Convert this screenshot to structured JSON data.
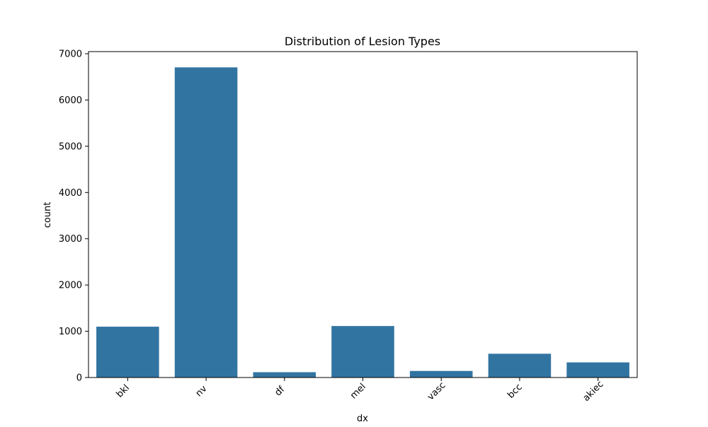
{
  "chart_data": {
    "type": "bar",
    "title": "Distribution of Lesion Types",
    "xlabel": "dx",
    "ylabel": "count",
    "categories": [
      "bkl",
      "nv",
      "df",
      "mel",
      "vasc",
      "bcc",
      "akiec"
    ],
    "values": [
      1099,
      6705,
      115,
      1113,
      142,
      514,
      327
    ],
    "ylim": [
      0,
      7000
    ],
    "yticks": [
      0,
      1000,
      2000,
      3000,
      4000,
      5000,
      6000,
      7000
    ],
    "bar_color": "#3274a1",
    "grid": false,
    "legend": "none"
  }
}
